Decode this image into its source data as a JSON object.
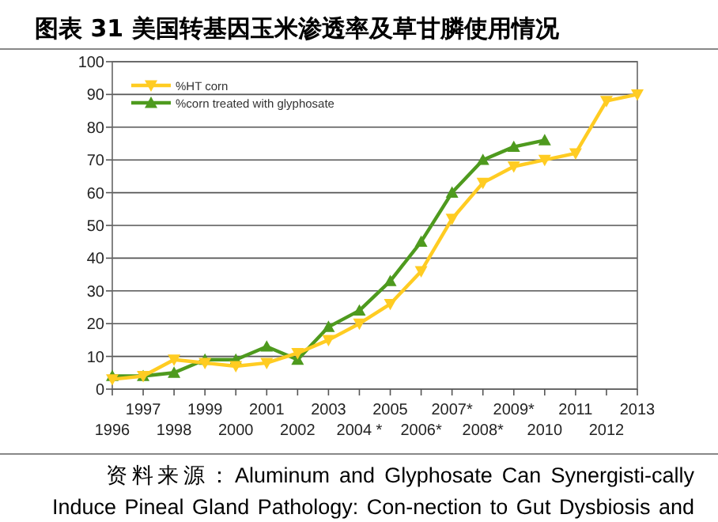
{
  "chart_data": {
    "type": "line",
    "title": "图表 31 美国转基因玉米渗透率及草甘膦使用情况",
    "categories": [
      "1996",
      "1997",
      "1998",
      "1999",
      "2000",
      "2001",
      "2002",
      "2003",
      "2004 *",
      "2005",
      "2006*",
      "2007*",
      "2008*",
      "2009*",
      "2010",
      "2011",
      "2012",
      "2013"
    ],
    "series": [
      {
        "name": "%HT corn",
        "color": "#ffcc22",
        "values": [
          3,
          4,
          9,
          8,
          7,
          8,
          11,
          15,
          20,
          26,
          36,
          52,
          63,
          68,
          70,
          72,
          88,
          90
        ]
      },
      {
        "name": "%corn treated with glyphosate",
        "color": "#4e9a1e",
        "values": [
          4,
          4,
          5,
          9,
          9,
          13,
          9,
          19,
          24,
          33,
          45,
          60,
          70,
          74,
          76,
          null,
          null,
          null
        ]
      }
    ],
    "ylim": [
      0,
      100
    ],
    "yticks": [
      0,
      10,
      20,
      30,
      40,
      50,
      60,
      70,
      80,
      90,
      100
    ],
    "grid": "y",
    "legend": "top left",
    "marker": "triangle",
    "line_style": "solid",
    "annotations": [
      "资料来源：Aluminum and Glyphosate Can Synergisti-cally Induce Pineal Gland Pathology: Con-nection to Gut Dysbiosis and"
    ]
  }
}
